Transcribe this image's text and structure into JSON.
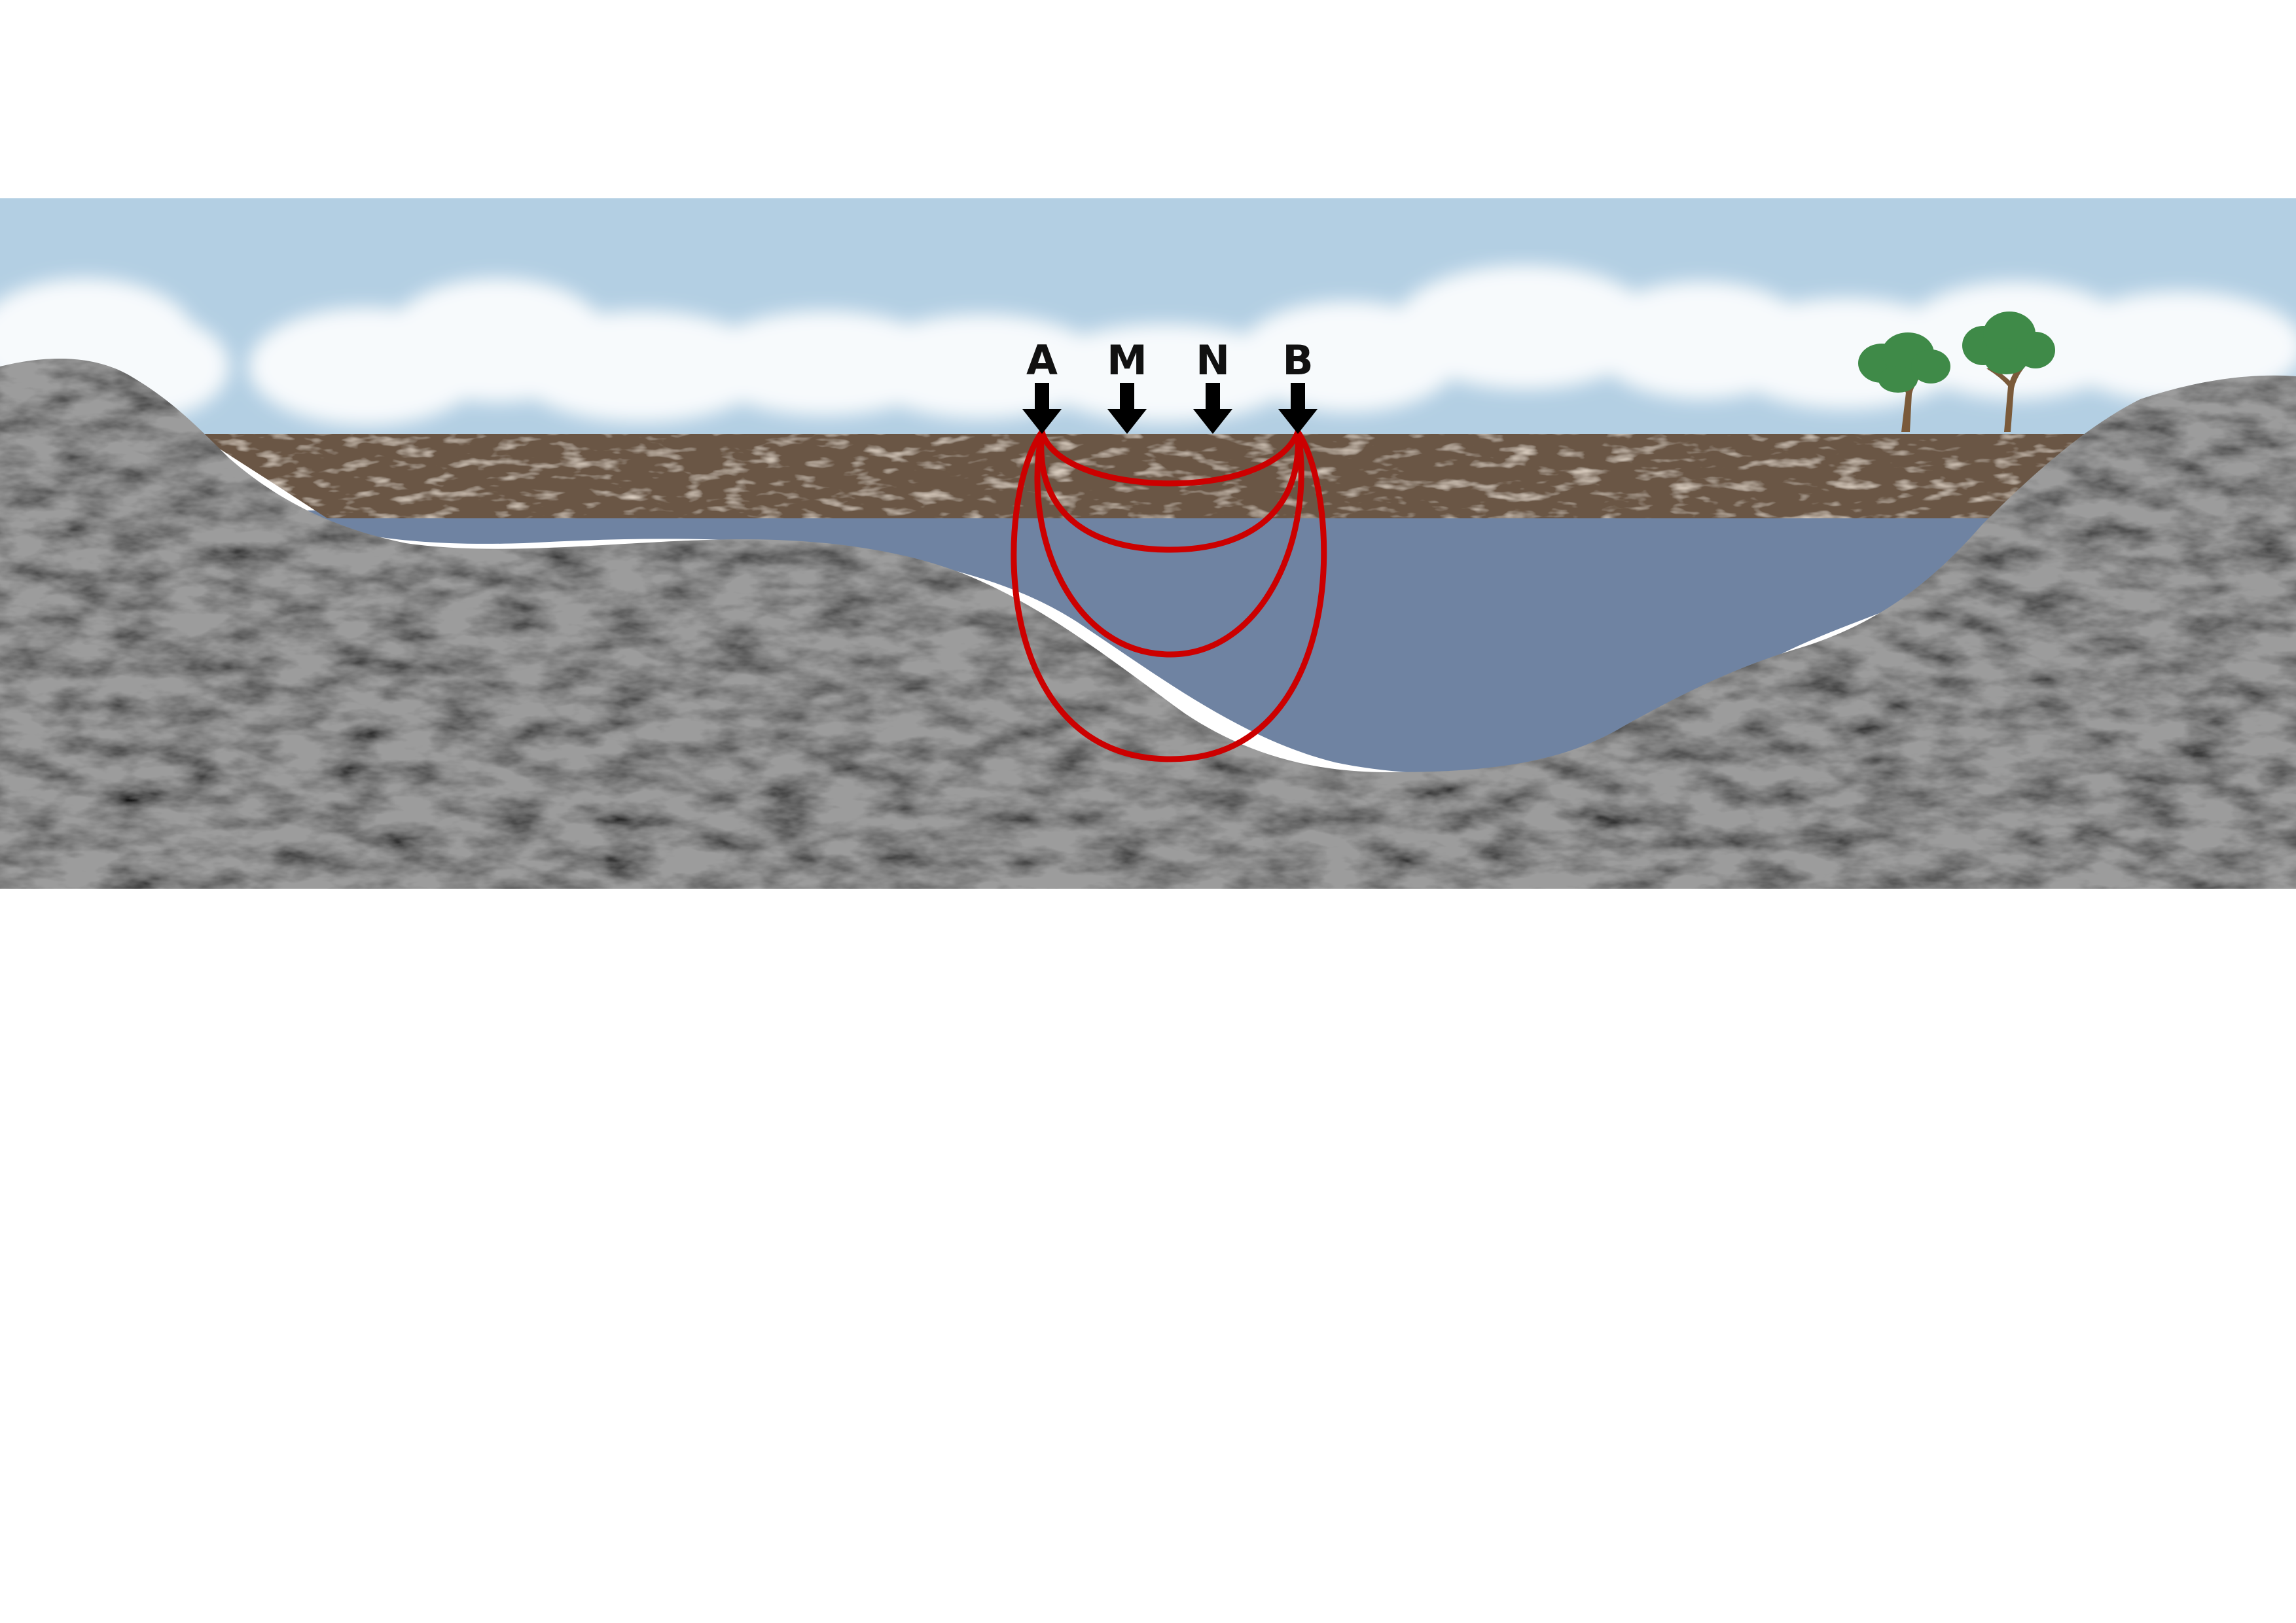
{
  "electrodes": [
    {
      "label": "A"
    },
    {
      "label": "M"
    },
    {
      "label": "N"
    },
    {
      "label": "B"
    }
  ],
  "colors": {
    "sky": "#b3cfe3",
    "cloud": "#ffffff",
    "soil": "#6b5644",
    "water": "#6f83a2",
    "bedrock": "#9c9c9c",
    "current_lines": "#cc0000",
    "electrode_arrow": "#000000",
    "tree_foliage": "#3f8a48",
    "tree_trunk": "#7a5a3a"
  },
  "icons": [
    "electrode-arrow-icon",
    "tree-icon",
    "cloud-icon"
  ]
}
